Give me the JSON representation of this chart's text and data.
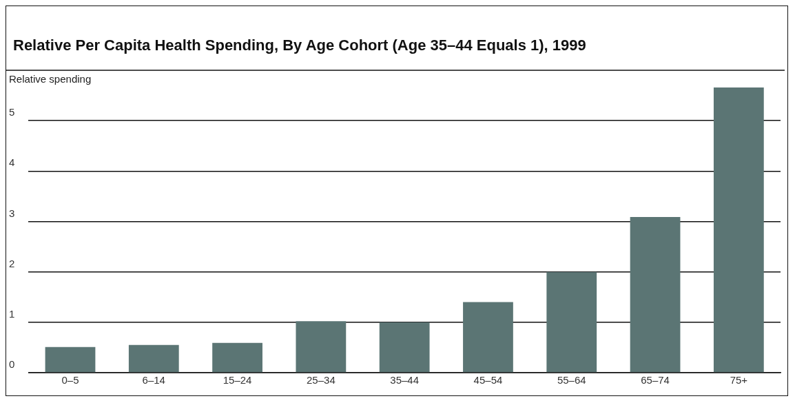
{
  "chart_data": {
    "type": "bar",
    "title": "Relative Per Capita Health Spending, By Age Cohort (Age 35–44 Equals 1), 1999",
    "ylabel": "Relative spending",
    "categories": [
      "0–5",
      "6–14",
      "15–24",
      "25–34",
      "35–44",
      "45–54",
      "55–64",
      "65–74",
      "75+"
    ],
    "values": [
      0.51,
      0.55,
      0.59,
      1.02,
      1.0,
      1.4,
      2.0,
      3.09,
      5.66
    ],
    "color": "#5b7574",
    "ylim": [
      0,
      6
    ],
    "yticks": [
      0,
      1,
      2,
      3,
      4,
      5
    ],
    "grid": "y",
    "legend": false
  }
}
